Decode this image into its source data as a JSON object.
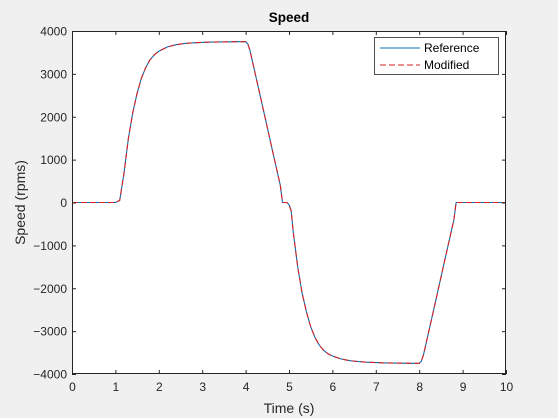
{
  "chart_data": {
    "type": "line",
    "title": "Speed",
    "xlabel": "Time (s)",
    "ylabel": "Speed (rpms)",
    "xlim": [
      0,
      10
    ],
    "ylim": [
      -4000,
      4000
    ],
    "x_ticks": [
      0,
      1,
      2,
      3,
      4,
      5,
      6,
      7,
      8,
      9,
      10
    ],
    "y_ticks": [
      -4000,
      -3000,
      -2000,
      -1000,
      0,
      1000,
      2000,
      3000,
      4000
    ],
    "x_tick_labels": [
      "0",
      "1",
      "2",
      "3",
      "4",
      "5",
      "6",
      "7",
      "8",
      "9",
      "10"
    ],
    "y_tick_labels": [
      "−4000",
      "−3000",
      "−2000",
      "−1000",
      "0",
      "1000",
      "2000",
      "3000",
      "4000"
    ],
    "grid": false,
    "legend_position": "top-right",
    "series": [
      {
        "name": "Reference",
        "color": "#0072bd",
        "style": "solid",
        "x": [
          0,
          1.0,
          1.1,
          1.2,
          1.3,
          1.4,
          1.5,
          1.6,
          1.7,
          1.8,
          1.9,
          2.0,
          2.2,
          2.4,
          2.6,
          2.8,
          3.0,
          3.2,
          3.5,
          3.8,
          4.0,
          4.05,
          4.1,
          4.2,
          4.4,
          4.6,
          4.8,
          4.85,
          4.95,
          5.0,
          5.05,
          5.1,
          5.2,
          5.3,
          5.4,
          5.5,
          5.6,
          5.7,
          5.8,
          5.9,
          6.0,
          6.2,
          6.4,
          6.6,
          6.8,
          7.0,
          7.2,
          7.5,
          7.8,
          8.0,
          8.05,
          8.1,
          8.2,
          8.4,
          8.6,
          8.8,
          8.85,
          9.0,
          10.0
        ],
        "y": [
          0,
          0,
          50,
          700,
          1500,
          2100,
          2550,
          2900,
          3150,
          3330,
          3450,
          3530,
          3630,
          3680,
          3710,
          3725,
          3735,
          3740,
          3745,
          3750,
          3750,
          3700,
          3550,
          3100,
          2200,
          1300,
          400,
          0,
          0,
          -50,
          -200,
          -700,
          -1500,
          -2100,
          -2550,
          -2900,
          -3150,
          -3330,
          -3450,
          -3530,
          -3580,
          -3650,
          -3690,
          -3710,
          -3725,
          -3735,
          -3740,
          -3745,
          -3750,
          -3750,
          -3700,
          -3550,
          -3100,
          -2200,
          -1300,
          -400,
          0,
          0,
          0
        ]
      },
      {
        "name": "Modified",
        "color": "#d62020",
        "style": "dashed",
        "x": [
          0,
          1.0,
          1.1,
          1.2,
          1.3,
          1.4,
          1.5,
          1.6,
          1.7,
          1.8,
          1.9,
          2.0,
          2.2,
          2.4,
          2.6,
          2.8,
          3.0,
          3.2,
          3.5,
          3.8,
          4.0,
          4.05,
          4.1,
          4.2,
          4.4,
          4.6,
          4.8,
          4.85,
          4.95,
          5.0,
          5.05,
          5.1,
          5.2,
          5.3,
          5.4,
          5.5,
          5.6,
          5.7,
          5.8,
          5.9,
          6.0,
          6.2,
          6.4,
          6.6,
          6.8,
          7.0,
          7.2,
          7.5,
          7.8,
          8.0,
          8.05,
          8.1,
          8.2,
          8.4,
          8.6,
          8.8,
          8.85,
          9.0,
          10.0
        ],
        "y": [
          0,
          0,
          50,
          700,
          1500,
          2100,
          2550,
          2900,
          3150,
          3330,
          3450,
          3530,
          3630,
          3680,
          3710,
          3725,
          3735,
          3740,
          3745,
          3750,
          3750,
          3700,
          3550,
          3100,
          2200,
          1300,
          400,
          0,
          0,
          -50,
          -200,
          -700,
          -1500,
          -2100,
          -2550,
          -2900,
          -3150,
          -3330,
          -3450,
          -3530,
          -3580,
          -3650,
          -3690,
          -3710,
          -3725,
          -3735,
          -3740,
          -3745,
          -3750,
          -3750,
          -3700,
          -3550,
          -3100,
          -2200,
          -1300,
          -400,
          0,
          0,
          0
        ]
      }
    ]
  }
}
